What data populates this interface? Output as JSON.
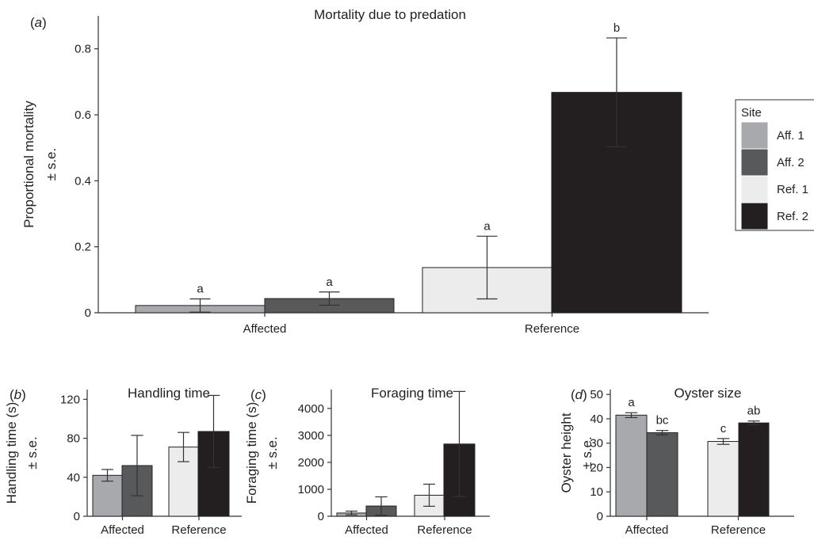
{
  "chart_data": [
    {
      "panel_label": "(a)",
      "type": "bar",
      "title": "Mortality due to predation",
      "xlabel": "",
      "ylabel": "Proportional mortality ± s.e.",
      "ylim": [
        0,
        0.9
      ],
      "yticks": [
        0,
        0.2,
        0.4,
        0.6,
        0.8
      ],
      "categories": [
        "Affected",
        "Reference"
      ],
      "series": [
        {
          "name": "Aff. 1",
          "values": [
            0.022,
            null
          ],
          "se": [
            0.02,
            null
          ],
          "letters": [
            "a",
            null
          ]
        },
        {
          "name": "Aff. 2",
          "values": [
            0.043,
            null
          ],
          "se": [
            0.02,
            null
          ],
          "letters": [
            "a",
            null
          ]
        },
        {
          "name": "Ref. 1",
          "values": [
            null,
            0.137
          ],
          "se": [
            null,
            0.095
          ],
          "letters": [
            null,
            "a"
          ]
        },
        {
          "name": "Ref. 2",
          "values": [
            null,
            0.668
          ],
          "se": [
            null,
            0.165
          ],
          "letters": [
            null,
            "b"
          ]
        }
      ],
      "legend": {
        "title": "Site",
        "position": "right"
      }
    },
    {
      "panel_label": "(b)",
      "type": "bar",
      "title": "Handling time",
      "xlabel": "",
      "ylabel": "Handling time (s) ± s.e.",
      "ylim": [
        0,
        130
      ],
      "yticks": [
        0,
        40,
        80,
        120
      ],
      "categories": [
        "Affected",
        "Reference"
      ],
      "series": [
        {
          "name": "Aff. 1",
          "values": [
            42,
            null
          ],
          "se": [
            6,
            null
          ]
        },
        {
          "name": "Aff. 2",
          "values": [
            52,
            null
          ],
          "se": [
            31,
            null
          ]
        },
        {
          "name": "Ref. 1",
          "values": [
            null,
            71
          ],
          "se": [
            null,
            15
          ]
        },
        {
          "name": "Ref. 2",
          "values": [
            null,
            87
          ],
          "se": [
            null,
            37
          ]
        }
      ]
    },
    {
      "panel_label": "(c)",
      "type": "bar",
      "title": "Foraging time",
      "xlabel": "",
      "ylabel": "Foraging time (s) ± s.e.",
      "ylim": [
        0,
        4700
      ],
      "yticks": [
        0,
        1000,
        2000,
        3000,
        4000
      ],
      "categories": [
        "Affected",
        "Reference"
      ],
      "series": [
        {
          "name": "Aff. 1",
          "values": [
            120,
            null
          ],
          "se": [
            70,
            null
          ]
        },
        {
          "name": "Aff. 2",
          "values": [
            380,
            null
          ],
          "se": [
            340,
            null
          ]
        },
        {
          "name": "Ref. 1",
          "values": [
            null,
            780
          ],
          "se": [
            null,
            410
          ]
        },
        {
          "name": "Ref. 2",
          "values": [
            null,
            2680
          ],
          "se": [
            null,
            1950
          ]
        }
      ]
    },
    {
      "panel_label": "(d)",
      "type": "bar",
      "title": "Oyster size",
      "xlabel": "",
      "ylabel": "Oyster height ± s.e.",
      "ylim": [
        0,
        52
      ],
      "yticks": [
        0,
        10,
        20,
        30,
        40,
        50
      ],
      "categories": [
        "Affected",
        "Reference"
      ],
      "series": [
        {
          "name": "Aff. 1",
          "values": [
            41.5,
            null
          ],
          "se": [
            1.0,
            null
          ],
          "letters": [
            "a",
            null
          ]
        },
        {
          "name": "Aff. 2",
          "values": [
            34.3,
            null
          ],
          "se": [
            0.9,
            null
          ],
          "letters": [
            "bc",
            null
          ]
        },
        {
          "name": "Ref. 1",
          "values": [
            null,
            30.7
          ],
          "se": [
            null,
            1.2
          ],
          "letters": [
            null,
            "c"
          ]
        },
        {
          "name": "Ref. 2",
          "values": [
            null,
            38.3
          ],
          "se": [
            null,
            0.8
          ],
          "letters": [
            null,
            "ab"
          ]
        }
      ]
    }
  ],
  "colors": {
    "Aff. 1": "#a7a9ac",
    "Aff. 2": "#58595b",
    "Ref. 1": "#ececec",
    "Ref. 2": "#231f20",
    "axis": "#333333",
    "bar_outline": "#222222"
  }
}
